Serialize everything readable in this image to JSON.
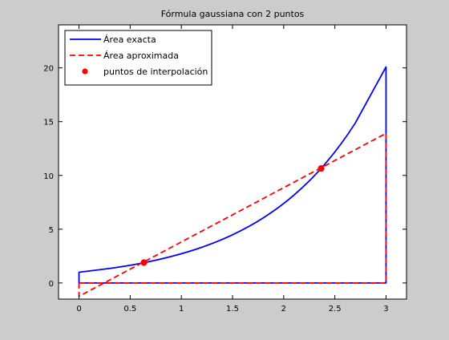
{
  "chart_data": {
    "type": "line",
    "title": "Fórmula gaussiana con 2 puntos",
    "xlabel": "",
    "ylabel": "",
    "xlim": [
      -0.2,
      3.2
    ],
    "ylim": [
      -1.5,
      24
    ],
    "xticks": [
      0,
      0.5,
      1,
      1.5,
      2,
      2.5,
      3
    ],
    "xtick_labels": [
      "0",
      "0.5",
      "1",
      "1.5",
      "2",
      "2.5",
      "3"
    ],
    "yticks": [
      0,
      5,
      10,
      15,
      20
    ],
    "ytick_labels": [
      "0",
      "5",
      "10",
      "15",
      "20"
    ],
    "grid": false,
    "legend_position": "top-left",
    "series": [
      {
        "name": "Área exacta",
        "style": "solid",
        "color": "#0000ff",
        "x": [
          0,
          0,
          0.3,
          0.6,
          0.9,
          1.2,
          1.5,
          1.8,
          2.1,
          2.4,
          2.7,
          3.0,
          3.0,
          0
        ],
        "y": [
          0,
          1.0,
          1.35,
          1.82,
          2.46,
          3.32,
          4.48,
          6.05,
          8.17,
          11.02,
          14.88,
          20.09,
          0,
          0
        ]
      },
      {
        "name": "Área aproximada",
        "style": "dashed",
        "color": "#ff0000",
        "x": [
          0,
          0,
          3.0,
          3.0,
          0
        ],
        "y": [
          0,
          -1.24,
          13.91,
          0,
          0
        ]
      },
      {
        "name": "puntos de interpolación",
        "style": "markers",
        "color": "#ff0000",
        "x": [
          0.634,
          2.366
        ],
        "y": [
          1.89,
          10.65
        ]
      }
    ]
  }
}
